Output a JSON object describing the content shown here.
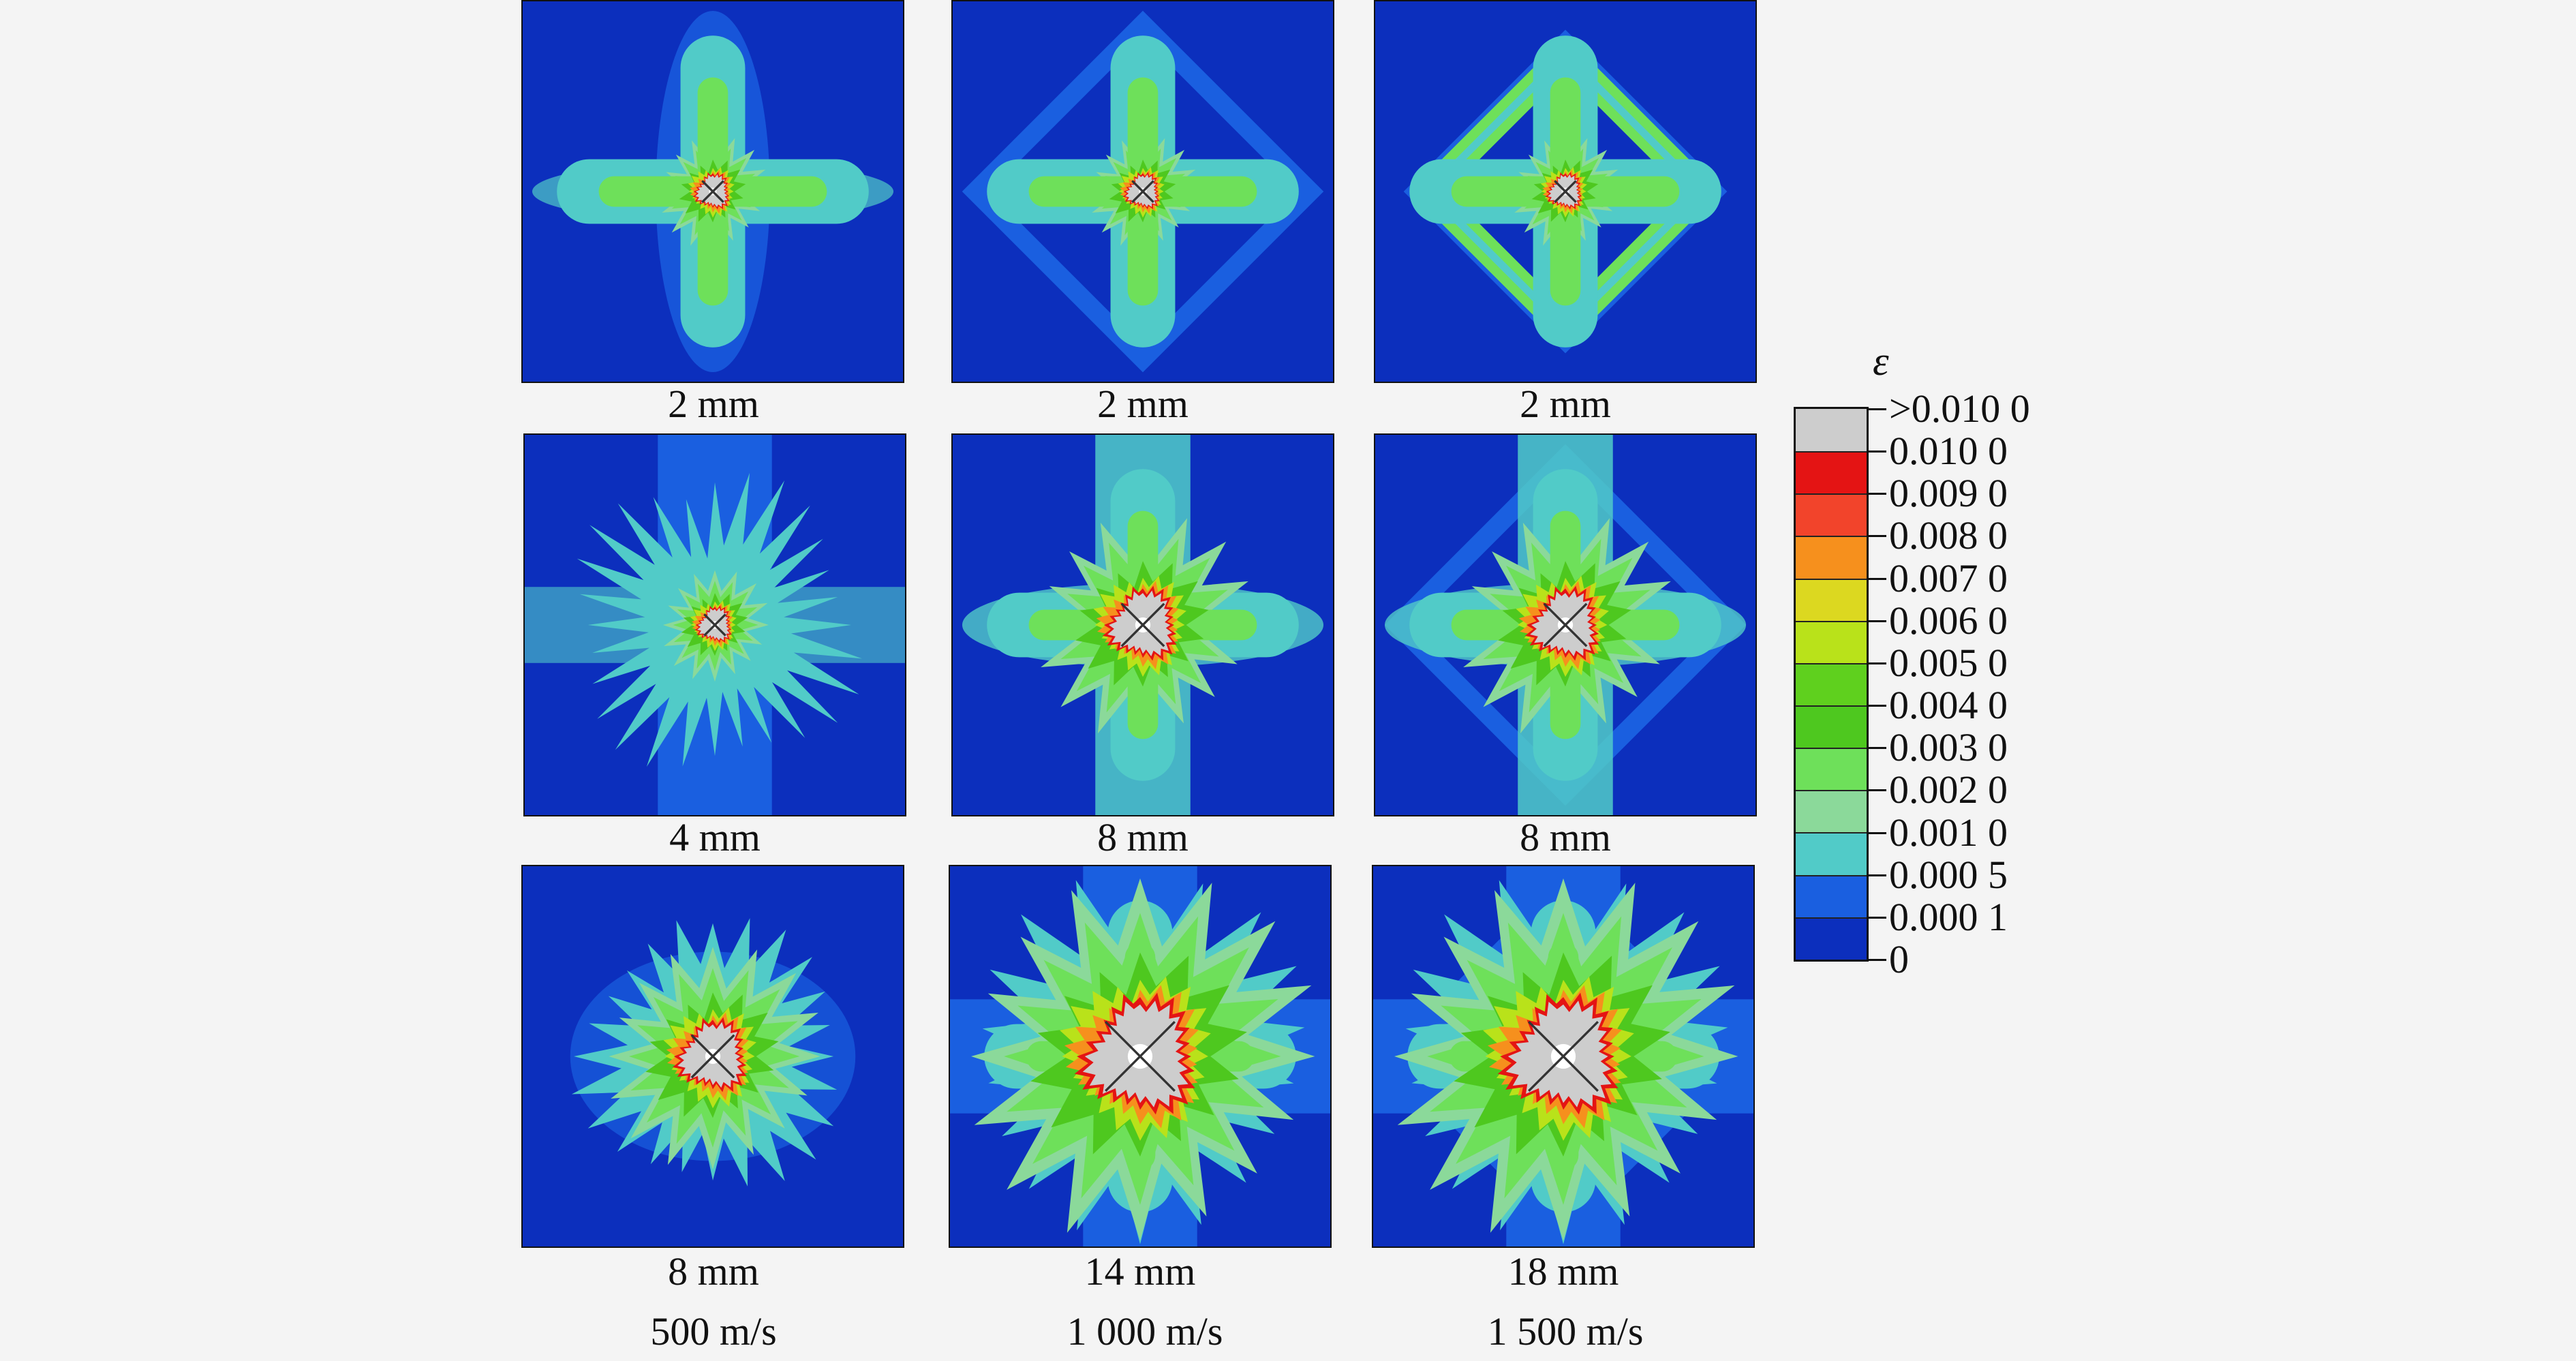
{
  "panels": [
    {
      "label": "2 mm",
      "pattern": "cross-thin",
      "core": "small"
    },
    {
      "label": "2 mm",
      "pattern": "cross-diamond",
      "core": "small"
    },
    {
      "label": "2 mm",
      "pattern": "diamond-strong",
      "core": "small"
    },
    {
      "label": "4 mm",
      "pattern": "cross-spiky",
      "core": "small"
    },
    {
      "label": "8 mm",
      "pattern": "cross-wide",
      "core": "medium"
    },
    {
      "label": "8 mm",
      "pattern": "cross-diamond-wide",
      "core": "medium"
    },
    {
      "label": "8 mm",
      "pattern": "blob",
      "core": "medium"
    },
    {
      "label": "14 mm",
      "pattern": "cross-large",
      "core": "large"
    },
    {
      "label": "18 mm",
      "pattern": "cross-large-diamond",
      "core": "large"
    }
  ],
  "velocities": [
    "500 m/s",
    "1 000 m/s",
    "1 500 m/s"
  ],
  "colorbar": {
    "title": "ε",
    "tick_labels": [
      ">0.010 0",
      "0.010 0",
      "0.009 0",
      "0.008 0",
      "0.007 0",
      "0.006 0",
      "0.005 0",
      "0.004 0",
      "0.003 0",
      "0.002 0",
      "0.001 0",
      "0.000 5",
      "0.000 1",
      "0"
    ],
    "colors": [
      "#cdcdcd",
      "#e41414",
      "#f2442b",
      "#f6901d",
      "#dcd820",
      "#b9e21a",
      "#5fd01e",
      "#4ec81f",
      "#6ee05a",
      "#8bd99a",
      "#51cbc8",
      "#1a5fe0",
      "#0c2fbd"
    ]
  }
}
